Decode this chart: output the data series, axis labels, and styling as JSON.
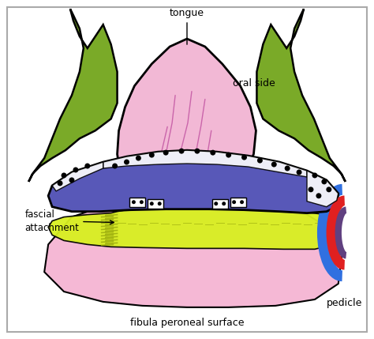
{
  "bg_color": "#ffffff",
  "border_color": "#aaaaaa",
  "tongue_color": "#f2b8d5",
  "tongue_stroke_color": "#000000",
  "tongue_line_color": "#c050a0",
  "jaw_color": "#7aaa28",
  "jaw_stroke_color": "#1a4008",
  "plate_color": "#5858b8",
  "plate_stroke_color": "#1a1a60",
  "fascia_color": "#d8f020",
  "fascia_stroke_color": "#a0b010",
  "fibula_color": "#f5b8d5",
  "fibula_stroke_color": "#c060a0",
  "pedicle_red": "#e02020",
  "pedicle_blue": "#3070e0",
  "pedicle_dark": "#604080",
  "dot_color": "#000000",
  "white_box_color": "#ffffff",
  "labels": {
    "tongue": "tongue",
    "oral_side": "oral side",
    "fascial": "fascial\nattachment",
    "fibula": "fibula peroneal surface",
    "pedicle": "pedicle"
  },
  "label_fontsize": 9,
  "figsize": [
    4.74,
    4.29
  ],
  "dpi": 100
}
